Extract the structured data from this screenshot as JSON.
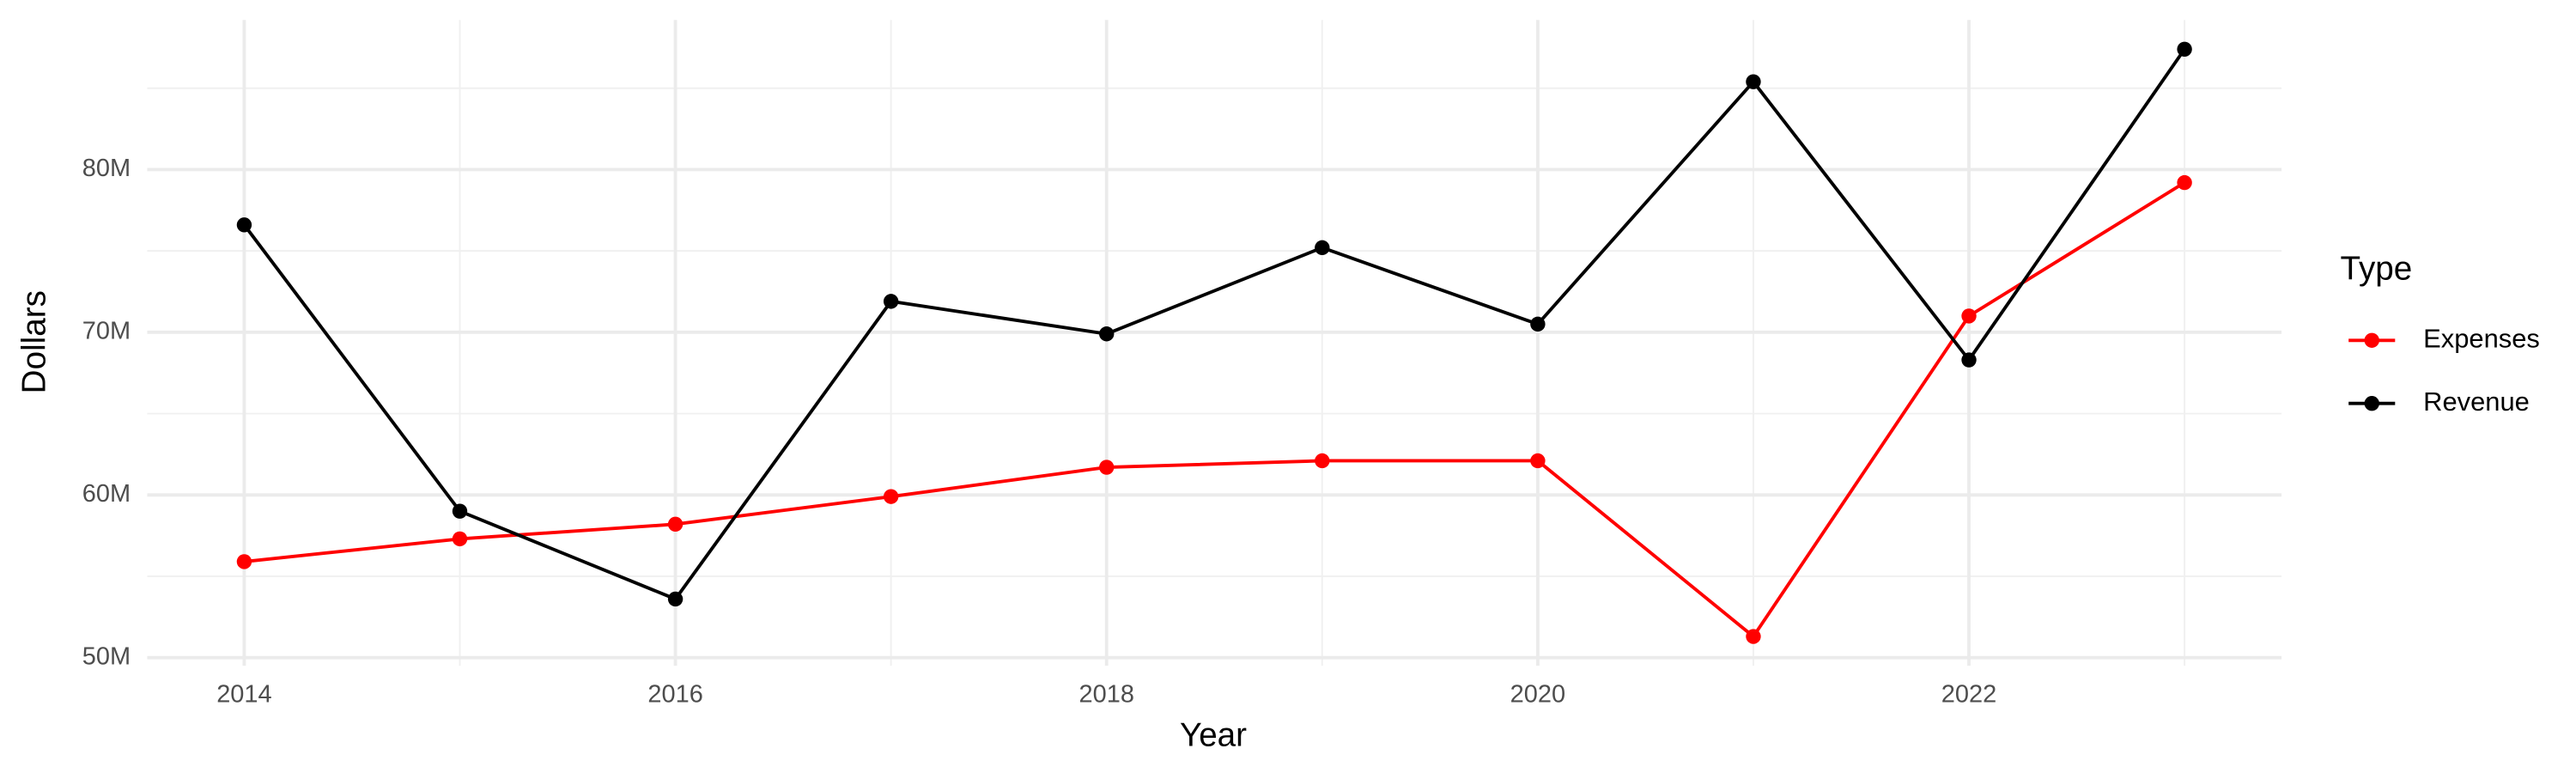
{
  "chart_data": {
    "type": "line",
    "x_label": "Year",
    "y_label": "Dollars",
    "legend_title": "Type",
    "legend_position": "right",
    "x": [
      2014,
      2015,
      2016,
      2017,
      2018,
      2019,
      2020,
      2021,
      2022,
      2023
    ],
    "series": [
      {
        "name": "Expenses",
        "color": "#ff0000",
        "values": [
          55900000,
          57300000,
          58200000,
          59900000,
          61700000,
          62100000,
          62100000,
          51300000,
          71000000,
          79200000
        ]
      },
      {
        "name": "Revenue",
        "color": "#000000",
        "values": [
          76600000,
          59000000,
          53600000,
          71900000,
          69900000,
          75200000,
          70500000,
          85400000,
          68300000,
          87400000
        ]
      }
    ],
    "xlim": [
      2013.55,
      2023.45
    ],
    "xticks": [
      2014,
      2016,
      2018,
      2020,
      2022
    ],
    "x_minor_ticks": [
      2015,
      2017,
      2019,
      2021,
      2023
    ],
    "ylim": [
      49500000,
      89200000
    ],
    "yticks": [
      {
        "value": 50000000,
        "label": "50M"
      },
      {
        "value": 60000000,
        "label": "60M"
      },
      {
        "value": 70000000,
        "label": "70M"
      },
      {
        "value": 80000000,
        "label": "80M"
      }
    ],
    "y_minor_ticks": [
      55000000,
      65000000,
      75000000,
      85000000
    ],
    "grid": true
  }
}
